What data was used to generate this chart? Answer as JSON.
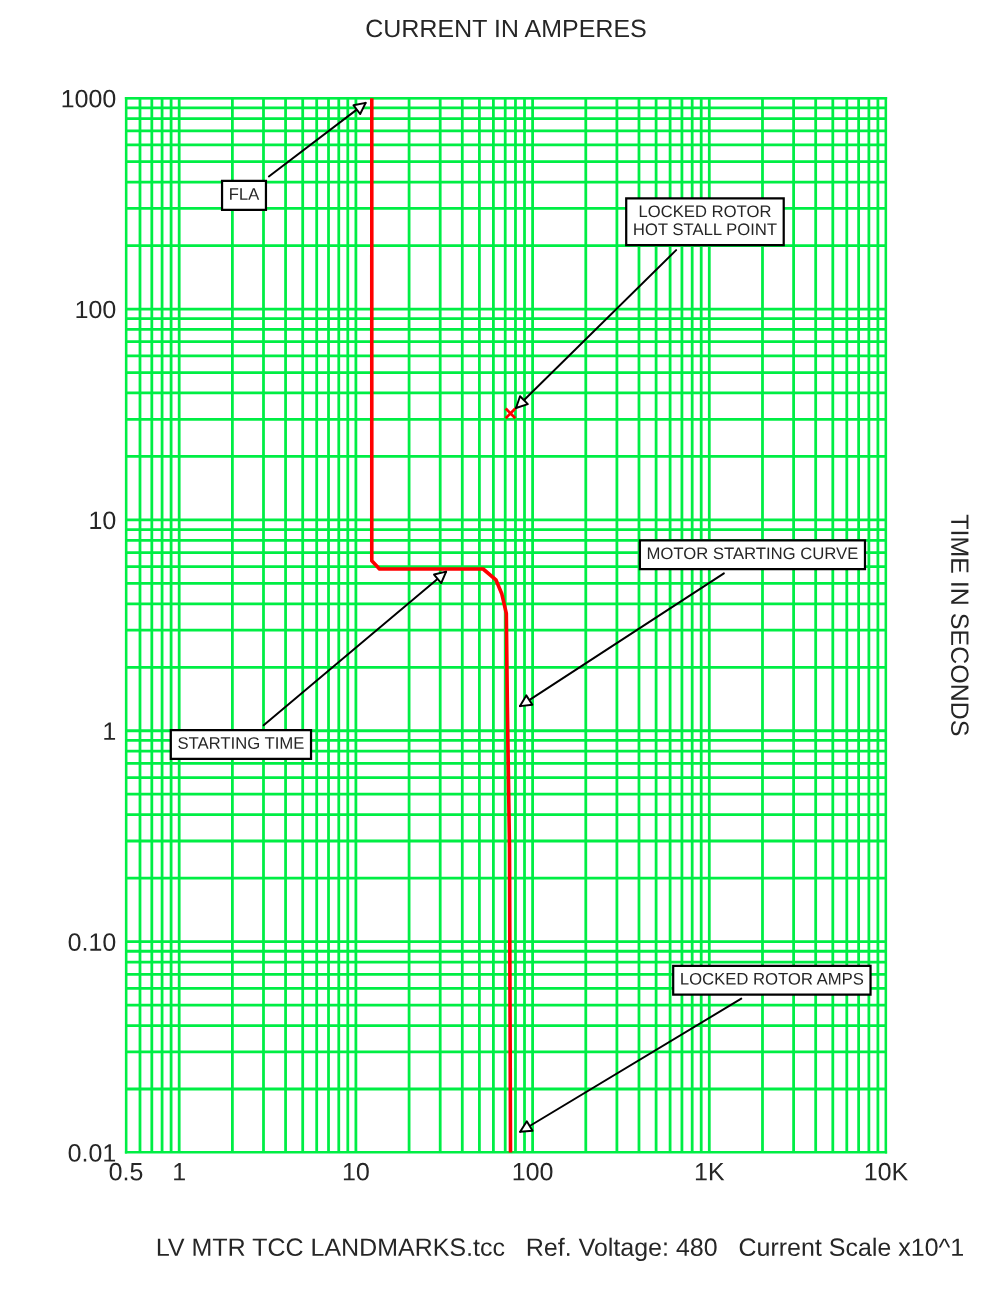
{
  "chart_data": {
    "type": "line",
    "title": "CURRENT IN AMPERES",
    "ylabel": "TIME IN SECONDS",
    "log": "xy",
    "grid": true,
    "xlim": [
      0.5,
      10000
    ],
    "ylim": [
      0.01,
      1000
    ],
    "xticks": [
      0.5,
      1,
      10,
      100,
      {
        "value": 1000,
        "label": "1K"
      },
      {
        "value": 10000,
        "label": "10K"
      }
    ],
    "yticks": [
      {
        "value": 0.01,
        "label": "0.01"
      },
      {
        "value": 0.1,
        "label": "0.10"
      },
      1,
      10,
      100,
      1000
    ],
    "series": [
      {
        "color": "#ff0000",
        "marker": "none",
        "line_style": "solid",
        "x": [
          12.3,
          12.3,
          13.6,
          52.5,
          62,
          67,
          71,
          72,
          74,
          75
        ],
        "values": [
          1000,
          6.4,
          5.85,
          5.85,
          5.2,
          4.45,
          3.6,
          1.3,
          0.28,
          0.01
        ]
      },
      {
        "type": "scatter",
        "color": "#ff0000",
        "marker": "cross",
        "x": [
          75
        ],
        "values": [
          32
        ]
      }
    ],
    "annotations": [
      {
        "text": "FLA",
        "x": 12.3,
        "y": 1000
      },
      {
        "text": "LOCKED ROTOR\nHOT STALL POINT",
        "x": 75,
        "y": 32
      },
      {
        "text": "STARTING TIME",
        "x": 35,
        "y": 6
      },
      {
        "text": "MOTOR STARTING CURVE",
        "x": 78,
        "y": 1.25
      },
      {
        "text": "LOCKED ROTOR AMPS",
        "x": 78,
        "y": 0.012
      },
      "LV MTR TCC LANDMARKS.tcc   Ref. Voltage: 480   Current Scale x10^1"
    ],
    "legend": false
  }
}
